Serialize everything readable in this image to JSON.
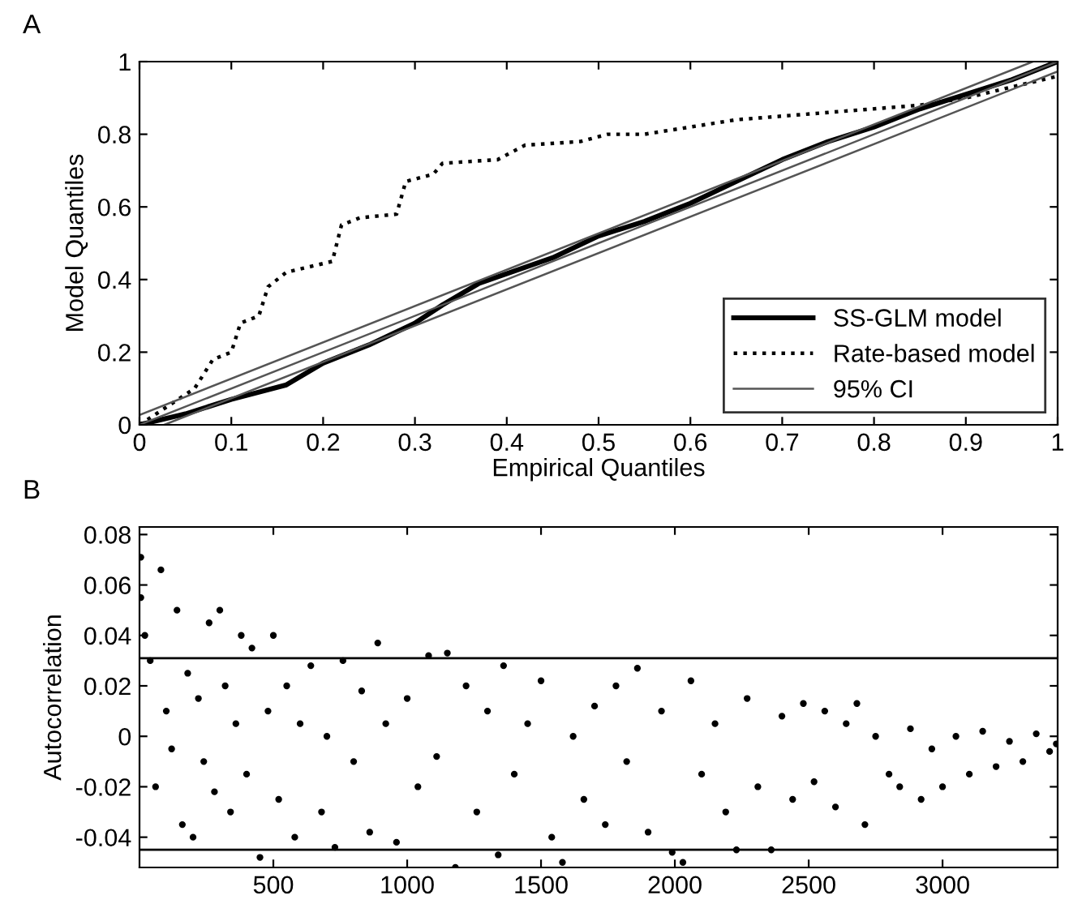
{
  "chart_data": [
    {
      "type": "line",
      "annotations": [
        "A"
      ],
      "xlabel": "Empirical Quantiles",
      "ylabel": "Model Quantiles",
      "xlim": [
        0,
        1
      ],
      "ylim": [
        0,
        1
      ],
      "xticks": [
        0,
        0.1,
        0.2,
        0.3,
        0.4,
        0.5,
        0.6,
        0.7,
        0.8,
        0.9,
        1
      ],
      "yticks": [
        0,
        0.2,
        0.4,
        0.6,
        0.8,
        1
      ],
      "grid": false,
      "legend": "bottom right",
      "marker": "none",
      "series": [
        {
          "name": "SS-GLM model",
          "color": "#000000",
          "line_style": "solid",
          "x": [
            0,
            0.05,
            0.1,
            0.16,
            0.2,
            0.25,
            0.3,
            0.33,
            0.37,
            0.45,
            0.5,
            0.55,
            0.6,
            0.65,
            0.7,
            0.75,
            0.8,
            0.85,
            0.9,
            0.95,
            1
          ],
          "values": [
            0,
            0.03,
            0.07,
            0.11,
            0.17,
            0.22,
            0.28,
            0.33,
            0.39,
            0.46,
            0.52,
            0.56,
            0.61,
            0.67,
            0.73,
            0.78,
            0.82,
            0.87,
            0.91,
            0.95,
            1
          ]
        },
        {
          "name": "Rate-based model",
          "color": "#000000",
          "line_style": "dotted",
          "x": [
            0,
            0.03,
            0.06,
            0.08,
            0.1,
            0.11,
            0.13,
            0.14,
            0.16,
            0.21,
            0.22,
            0.24,
            0.28,
            0.29,
            0.32,
            0.33,
            0.39,
            0.42,
            0.48,
            0.51,
            0.55,
            0.65,
            0.75,
            0.85,
            0.9,
            0.95,
            1
          ],
          "values": [
            0,
            0.05,
            0.1,
            0.18,
            0.2,
            0.28,
            0.3,
            0.38,
            0.42,
            0.45,
            0.55,
            0.57,
            0.58,
            0.67,
            0.69,
            0.72,
            0.73,
            0.77,
            0.78,
            0.8,
            0.8,
            0.84,
            0.86,
            0.88,
            0.9,
            0.93,
            0.96
          ]
        },
        {
          "name": "95% CI",
          "color": "#555555",
          "line_style": "solid",
          "x": [
            0,
            0.973
          ],
          "values": [
            0.027,
            1
          ]
        },
        {
          "color": "#555555",
          "line_style": "solid",
          "x": [
            0.027,
            1
          ],
          "values": [
            0,
            0.973
          ]
        },
        {
          "color": "#555555",
          "line_style": "solid",
          "x": [
            0,
            1
          ],
          "values": [
            0,
            1
          ]
        }
      ]
    },
    {
      "type": "scatter",
      "annotations": [
        "B"
      ],
      "ylabel": "Autocorrelation",
      "xlim": [
        0,
        3430
      ],
      "ylim": [
        -0.052,
        0.083
      ],
      "xticks": [
        500,
        1000,
        1500,
        2000,
        2500,
        3000
      ],
      "yticks": [
        -0.04,
        -0.02,
        0,
        0.02,
        0.04,
        0.06,
        0.08
      ],
      "grid": false,
      "marker": "circle",
      "ref_lines": [
        {
          "axis": "y",
          "value": 0.031,
          "color": "#000000"
        },
        {
          "axis": "y",
          "value": -0.045,
          "color": "#000000"
        }
      ],
      "series": [
        {
          "color": "#000000",
          "x": [
            5,
            5,
            20,
            40,
            60,
            80,
            100,
            120,
            140,
            160,
            180,
            200,
            220,
            240,
            260,
            280,
            300,
            320,
            340,
            360,
            380,
            400,
            420,
            450,
            480,
            500,
            520,
            550,
            580,
            600,
            640,
            680,
            700,
            730,
            760,
            800,
            830,
            860,
            890,
            920,
            960,
            1000,
            1040,
            1080,
            1110,
            1150,
            1180,
            1220,
            1260,
            1300,
            1340,
            1360,
            1400,
            1450,
            1500,
            1540,
            1580,
            1620,
            1660,
            1700,
            1740,
            1780,
            1820,
            1860,
            1900,
            1950,
            1990,
            2030,
            2060,
            2100,
            2150,
            2190,
            2230,
            2270,
            2310,
            2360,
            2400,
            2440,
            2480,
            2520,
            2560,
            2600,
            2640,
            2680,
            2710,
            2750,
            2800,
            2840,
            2880,
            2920,
            2960,
            3000,
            3050,
            3100,
            3150,
            3200,
            3250,
            3300,
            3350,
            3400,
            3425
          ],
          "values": [
            0.071,
            0.055,
            0.04,
            0.03,
            -0.02,
            0.066,
            0.01,
            -0.005,
            0.05,
            -0.035,
            0.025,
            -0.04,
            0.015,
            -0.01,
            0.045,
            -0.022,
            0.05,
            0.02,
            -0.03,
            0.005,
            0.04,
            -0.015,
            0.035,
            -0.048,
            0.01,
            0.04,
            -0.025,
            0.02,
            -0.04,
            0.005,
            0.028,
            -0.03,
            0.0,
            -0.044,
            0.03,
            -0.01,
            0.018,
            -0.038,
            0.037,
            0.005,
            -0.042,
            0.015,
            -0.02,
            0.032,
            -0.008,
            0.033,
            -0.052,
            0.02,
            -0.03,
            0.01,
            -0.047,
            0.028,
            -0.015,
            0.005,
            0.022,
            -0.04,
            -0.05,
            0.0,
            -0.025,
            0.012,
            -0.035,
            0.02,
            -0.01,
            0.027,
            -0.038,
            0.01,
            -0.046,
            -0.05,
            0.022,
            -0.015,
            0.005,
            -0.03,
            -0.045,
            0.015,
            -0.02,
            -0.045,
            0.008,
            -0.025,
            0.013,
            -0.018,
            0.01,
            -0.028,
            0.005,
            0.013,
            -0.035,
            0.0,
            -0.015,
            -0.02,
            0.003,
            -0.025,
            -0.005,
            -0.02,
            0.0,
            -0.015,
            0.002,
            -0.012,
            -0.002,
            -0.01,
            0.001,
            -0.006,
            -0.003
          ]
        }
      ]
    }
  ]
}
